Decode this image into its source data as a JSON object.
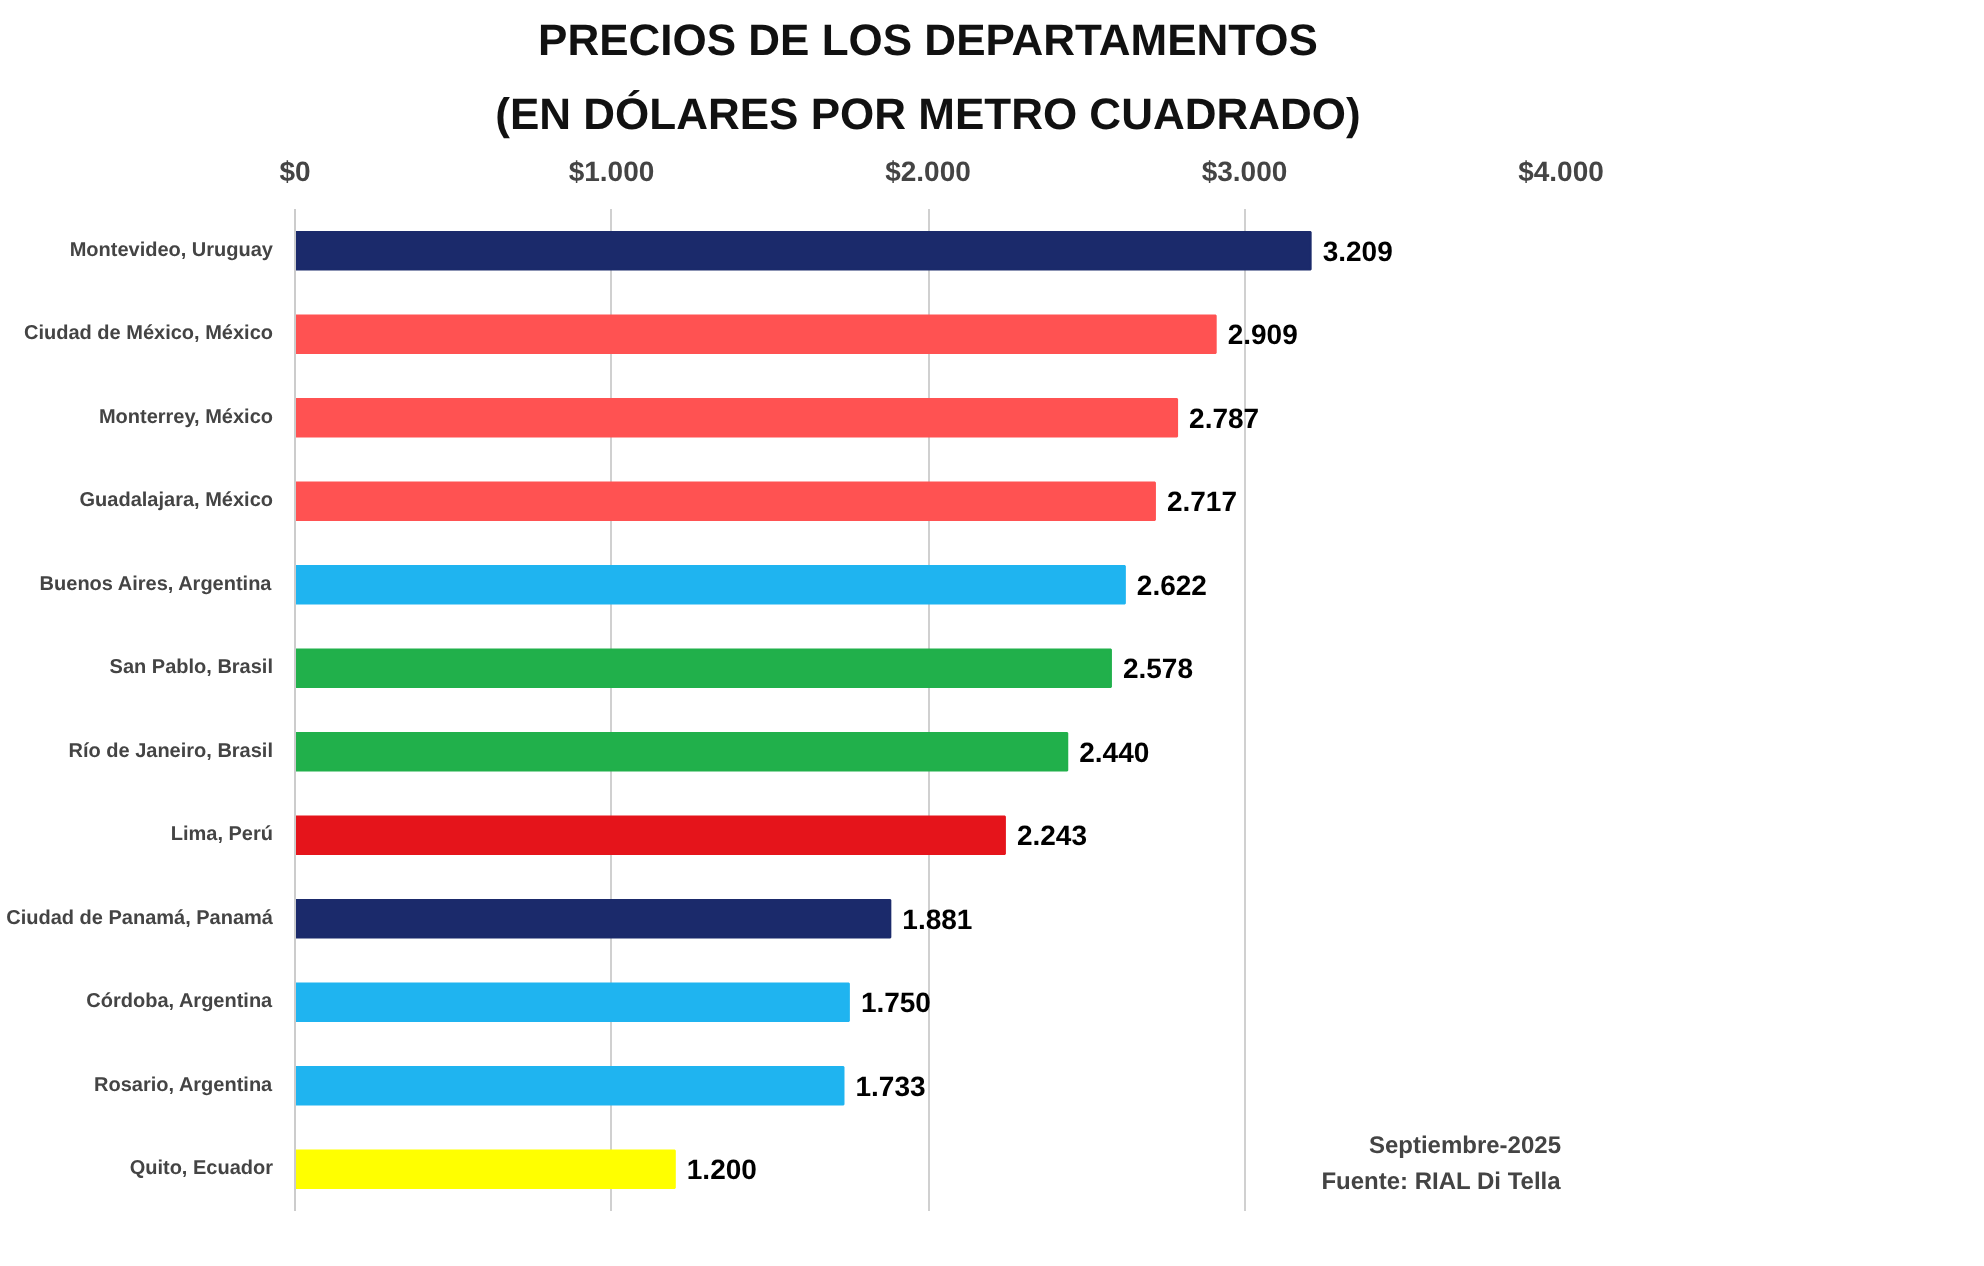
{
  "chart_data": {
    "type": "bar",
    "orientation": "horizontal",
    "title": "PRECIOS DE LOS DEPARTAMENTOS",
    "subtitle": "(EN DÓLARES POR METRO CUADRADO)",
    "categories": [
      "Montevideo, Uruguay",
      "Ciudad de México, México",
      "Monterrey, México",
      "Guadalajara, México",
      "Buenos Aires, Argentina",
      "San Pablo, Brasil",
      "Río de Janeiro, Brasil",
      "Lima, Perú",
      "Ciudad de Panamá, Panamá",
      "Córdoba, Argentina",
      "Rosario, Argentina",
      "Quito, Ecuador"
    ],
    "values": [
      3209,
      2909,
      2787,
      2717,
      2622,
      2578,
      2440,
      2243,
      1881,
      1750,
      1733,
      1200
    ],
    "value_labels": [
      "3.209",
      "2.909",
      "2.787",
      "2.717",
      "2.622",
      "2.578",
      "2.440",
      "2.243",
      "1.881",
      "1.750",
      "1.733",
      "1.200"
    ],
    "colors": [
      "#1b2a6b",
      "#ff5252",
      "#ff5252",
      "#ff5252",
      "#1fb4f0",
      "#21b04b",
      "#21b04b",
      "#e5141b",
      "#1b2a6b",
      "#1fb4f0",
      "#1fb4f0",
      "#ffff00"
    ],
    "xlim": [
      0,
      4000
    ],
    "xticks": [
      {
        "value": 0,
        "label": "$0"
      },
      {
        "value": 1000,
        "label": "$1.000"
      },
      {
        "value": 2000,
        "label": "$2.000"
      },
      {
        "value": 3000,
        "label": "$3.000"
      },
      {
        "value": 4000,
        "label": "$4.000"
      }
    ],
    "grid": "x",
    "annotations": [
      "Septiembre-2025",
      "Fuente: RIAL Di Tella"
    ]
  }
}
